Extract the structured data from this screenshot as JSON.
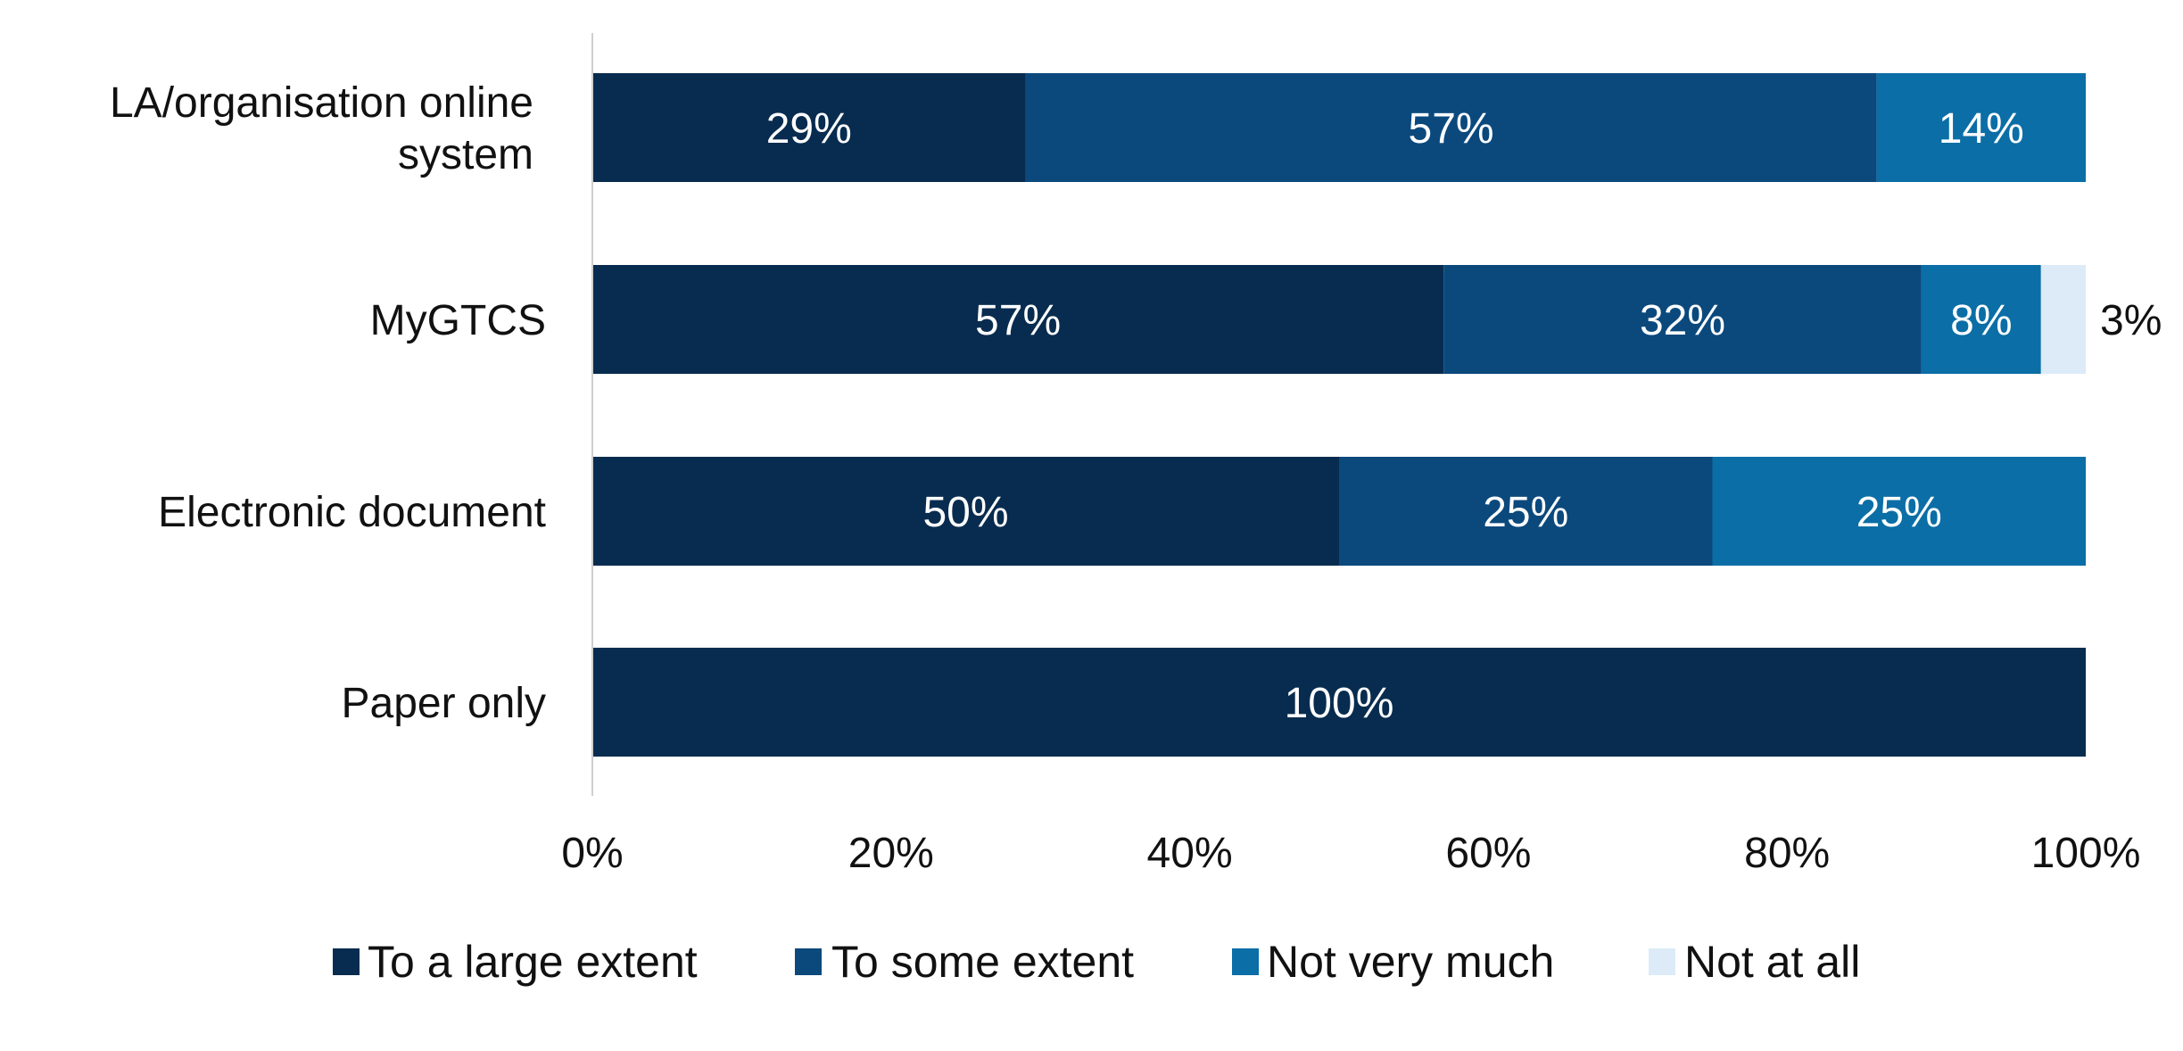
{
  "chart_data": {
    "type": "bar",
    "orientation": "horizontal",
    "stacked": true,
    "categories": [
      [
        "LA/organisation online",
        "system"
      ],
      [
        "MyGTCS"
      ],
      [
        "Electronic document"
      ],
      [
        "Paper only"
      ]
    ],
    "series": [
      {
        "name": "To a large extent",
        "color": "#082c4f",
        "values": [
          29,
          57,
          50,
          100
        ],
        "labels": [
          "29%",
          "57%",
          "50%",
          "100%"
        ]
      },
      {
        "name": "To some extent",
        "color": "#0b497d",
        "values": [
          57,
          32,
          25,
          0
        ],
        "labels": [
          "57%",
          "32%",
          "25%",
          ""
        ]
      },
      {
        "name": "Not very much",
        "color": "#0b6ea6",
        "values": [
          14,
          8,
          25,
          0
        ],
        "labels": [
          "14%",
          "8%",
          "25%",
          ""
        ]
      },
      {
        "name": "Not at all",
        "color": "#dcebf7",
        "values": [
          0,
          3,
          0,
          0
        ],
        "labels": [
          "",
          "3%",
          "",
          ""
        ]
      }
    ],
    "xlim": [
      0,
      100
    ],
    "xticks": [
      "0%",
      "20%",
      "40%",
      "60%",
      "80%",
      "100%"
    ],
    "grid": false,
    "legend": "bottom",
    "title": "",
    "xlabel": "",
    "ylabel": ""
  }
}
